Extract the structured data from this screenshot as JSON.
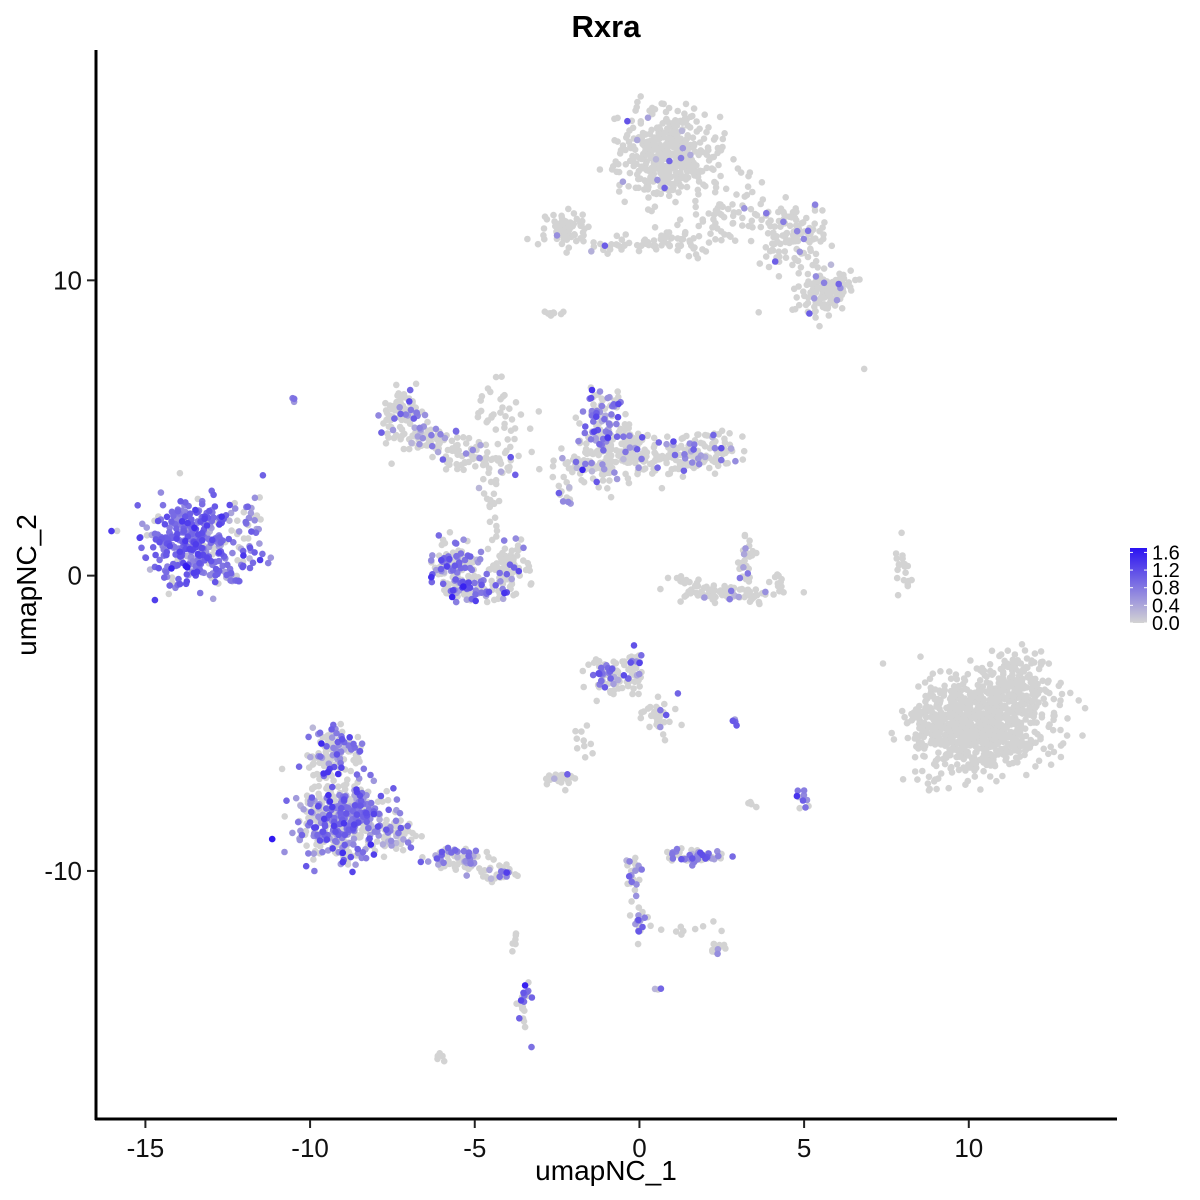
{
  "chart_data": {
    "type": "scatter",
    "title": "Rxra",
    "xlabel": "umapNC_1",
    "ylabel": "umapNC_2",
    "xlim": [
      -16.5,
      14.5
    ],
    "ylim": [
      -18.4,
      17.8
    ],
    "x_ticks": [
      {
        "value": -15,
        "label": "-15"
      },
      {
        "value": -10,
        "label": "-10"
      },
      {
        "value": -5,
        "label": "-5"
      },
      {
        "value": 0,
        "label": "0"
      },
      {
        "value": 5,
        "label": "5"
      },
      {
        "value": 10,
        "label": "10"
      }
    ],
    "y_ticks": [
      {
        "value": 10,
        "label": "10"
      },
      {
        "value": 0,
        "label": "0"
      },
      {
        "value": -10,
        "label": "-10"
      }
    ],
    "color_scale": {
      "low": "#d3d3d3",
      "high": "#2b13f2",
      "min": 0.0,
      "max": 1.7,
      "breaks": [
        {
          "value": 1.6,
          "label": "1.6"
        },
        {
          "value": 1.2,
          "label": "1.2"
        },
        {
          "value": 0.8,
          "label": "0.8"
        },
        {
          "value": 0.4,
          "label": "0.4"
        },
        {
          "value": 0.0,
          "label": "0.0"
        }
      ]
    },
    "clusters": [
      {
        "cx": -13.5,
        "cy": 1.2,
        "sx": 0.9,
        "sy": 1.0,
        "n": 360,
        "expr": 0.85,
        "frac": 0.9
      },
      {
        "cx": -11.8,
        "cy": 1.5,
        "sx": 0.35,
        "sy": 1.0,
        "n": 40,
        "expr": 0.7,
        "frac": 0.7
      },
      {
        "cx": -12.5,
        "cy": 0.0,
        "sx": 0.4,
        "sy": 0.2,
        "n": 25,
        "expr": 0.7,
        "frac": 0.7
      },
      {
        "cx": -10.5,
        "cy": 6.0,
        "sx": 0.08,
        "sy": 0.08,
        "n": 4,
        "expr": 0.7,
        "frac": 1.0
      },
      {
        "cx": 0.9,
        "cy": 14.2,
        "sx": 1.0,
        "sy": 1.0,
        "n": 450,
        "expr": 0.6,
        "frac": 0.02
      },
      {
        "cx": 2.8,
        "cy": 12.3,
        "sx": 0.8,
        "sy": 0.7,
        "n": 60,
        "expr": 0.7,
        "frac": 0.05
      },
      {
        "cx": 4.6,
        "cy": 11.4,
        "sx": 0.8,
        "sy": 0.8,
        "n": 120,
        "expr": 0.7,
        "frac": 0.06
      },
      {
        "cx": 5.5,
        "cy": 9.5,
        "sx": 0.5,
        "sy": 0.5,
        "n": 90,
        "expr": 0.7,
        "frac": 0.08
      },
      {
        "cx": 6.0,
        "cy": 9.8,
        "sx": 0.3,
        "sy": 0.3,
        "n": 40,
        "expr": 0.7,
        "frac": 0.08
      },
      {
        "cx": -2.2,
        "cy": 11.7,
        "sx": 0.5,
        "sy": 0.4,
        "n": 70,
        "expr": 0.6,
        "frac": 0.05
      },
      {
        "cx": -0.3,
        "cy": 11.2,
        "sx": 1.0,
        "sy": 0.2,
        "n": 40,
        "expr": 0.6,
        "frac": 0.03
      },
      {
        "cx": 1.3,
        "cy": 11.3,
        "sx": 0.6,
        "sy": 0.3,
        "n": 30,
        "expr": 0.6,
        "frac": 0.03
      },
      {
        "cx": -2.7,
        "cy": 8.9,
        "sx": 0.25,
        "sy": 0.1,
        "n": 8,
        "expr": 0.6,
        "frac": 0.0
      },
      {
        "cx": -7.2,
        "cy": 5.5,
        "sx": 0.45,
        "sy": 0.5,
        "n": 80,
        "expr": 0.75,
        "frac": 0.3
      },
      {
        "cx": -6.3,
        "cy": 4.6,
        "sx": 0.8,
        "sy": 0.35,
        "n": 70,
        "expr": 0.7,
        "frac": 0.15
      },
      {
        "cx": -4.9,
        "cy": 4.0,
        "sx": 0.7,
        "sy": 0.35,
        "n": 60,
        "expr": 0.7,
        "frac": 0.12
      },
      {
        "cx": -4.5,
        "cy": 5.8,
        "sx": 0.35,
        "sy": 0.9,
        "n": 20,
        "expr": 0.6,
        "frac": 0.0
      },
      {
        "cx": -3.8,
        "cy": 5.0,
        "sx": 0.35,
        "sy": 0.6,
        "n": 15,
        "expr": 0.6,
        "frac": 0.0
      },
      {
        "cx": -4.5,
        "cy": 2.5,
        "sx": 0.25,
        "sy": 0.7,
        "n": 20,
        "expr": 0.6,
        "frac": 0.05
      },
      {
        "cx": -5.6,
        "cy": 0.4,
        "sx": 0.5,
        "sy": 0.5,
        "n": 110,
        "expr": 0.85,
        "frac": 0.55
      },
      {
        "cx": -5.2,
        "cy": -0.5,
        "sx": 0.6,
        "sy": 0.25,
        "n": 70,
        "expr": 0.8,
        "frac": 0.4
      },
      {
        "cx": -4.0,
        "cy": 0.2,
        "sx": 0.5,
        "sy": 0.6,
        "n": 90,
        "expr": 0.8,
        "frac": 0.18
      },
      {
        "cx": -1.2,
        "cy": 5.3,
        "sx": 0.4,
        "sy": 0.7,
        "n": 100,
        "expr": 0.85,
        "frac": 0.4
      },
      {
        "cx": -0.4,
        "cy": 4.5,
        "sx": 0.5,
        "sy": 0.5,
        "n": 80,
        "expr": 0.75,
        "frac": 0.2
      },
      {
        "cx": -1.4,
        "cy": 3.7,
        "sx": 0.7,
        "sy": 0.5,
        "n": 90,
        "expr": 0.7,
        "frac": 0.1
      },
      {
        "cx": 0.6,
        "cy": 3.9,
        "sx": 1.0,
        "sy": 0.35,
        "n": 80,
        "expr": 0.7,
        "frac": 0.1
      },
      {
        "cx": 1.9,
        "cy": 4.2,
        "sx": 0.7,
        "sy": 0.5,
        "n": 110,
        "expr": 0.75,
        "frac": 0.18
      },
      {
        "cx": -2.3,
        "cy": 2.7,
        "sx": 0.2,
        "sy": 0.4,
        "n": 15,
        "expr": 0.7,
        "frac": 0.25
      },
      {
        "cx": 3.2,
        "cy": 0.6,
        "sx": 0.2,
        "sy": 0.6,
        "n": 30,
        "expr": 0.7,
        "frac": 0.2
      },
      {
        "cx": 2.6,
        "cy": -0.6,
        "sx": 0.9,
        "sy": 0.2,
        "n": 80,
        "expr": 0.7,
        "frac": 0.06
      },
      {
        "cx": 1.5,
        "cy": -0.2,
        "sx": 0.3,
        "sy": 0.2,
        "n": 15,
        "expr": 0.7,
        "frac": 0.0
      },
      {
        "cx": 4.1,
        "cy": -0.2,
        "sx": 0.2,
        "sy": 0.3,
        "n": 10,
        "expr": 0.7,
        "frac": 0.1
      },
      {
        "cx": 8.0,
        "cy": 0.3,
        "sx": 0.15,
        "sy": 0.6,
        "n": 20,
        "expr": 0.6,
        "frac": 0.0
      },
      {
        "cx": 10.3,
        "cy": -5.0,
        "sx": 1.3,
        "sy": 1.1,
        "n": 850,
        "expr": 0.6,
        "frac": 0.003
      },
      {
        "cx": 11.6,
        "cy": -3.6,
        "sx": 0.7,
        "sy": 0.7,
        "n": 120,
        "expr": 0.6,
        "frac": 0.0
      },
      {
        "cx": 8.8,
        "cy": -5.2,
        "sx": 0.4,
        "sy": 0.5,
        "n": 40,
        "expr": 0.6,
        "frac": 0.0
      },
      {
        "cx": -1.0,
        "cy": -3.4,
        "sx": 0.4,
        "sy": 0.45,
        "n": 60,
        "expr": 0.8,
        "frac": 0.4
      },
      {
        "cx": -0.2,
        "cy": -3.2,
        "sx": 0.3,
        "sy": 0.5,
        "n": 45,
        "expr": 0.8,
        "frac": 0.3
      },
      {
        "cx": 0.6,
        "cy": -4.7,
        "sx": 0.4,
        "sy": 0.5,
        "n": 35,
        "expr": 0.7,
        "frac": 0.2
      },
      {
        "cx": 2.9,
        "cy": -5.0,
        "sx": 0.08,
        "sy": 0.08,
        "n": 4,
        "expr": 0.9,
        "frac": 0.8
      },
      {
        "cx": -2.4,
        "cy": -6.9,
        "sx": 0.3,
        "sy": 0.2,
        "n": 30,
        "expr": 0.6,
        "frac": 0.07
      },
      {
        "cx": -1.7,
        "cy": -5.6,
        "sx": 0.3,
        "sy": 0.4,
        "n": 10,
        "expr": 0.6,
        "frac": 0.0
      },
      {
        "cx": 5.0,
        "cy": -7.5,
        "sx": 0.2,
        "sy": 0.25,
        "n": 10,
        "expr": 0.8,
        "frac": 0.7
      },
      {
        "cx": 3.4,
        "cy": -7.7,
        "sx": 0.15,
        "sy": 0.15,
        "n": 4,
        "expr": 0.6,
        "frac": 0.0
      },
      {
        "cx": -9.3,
        "cy": -6.0,
        "sx": 0.6,
        "sy": 0.6,
        "n": 120,
        "expr": 0.8,
        "frac": 0.45
      },
      {
        "cx": -9.0,
        "cy": -8.3,
        "sx": 0.9,
        "sy": 0.9,
        "n": 480,
        "expr": 0.8,
        "frac": 0.5
      },
      {
        "cx": -7.5,
        "cy": -8.8,
        "sx": 0.5,
        "sy": 0.4,
        "n": 60,
        "expr": 0.7,
        "frac": 0.25
      },
      {
        "cx": -5.5,
        "cy": -9.6,
        "sx": 0.6,
        "sy": 0.3,
        "n": 70,
        "expr": 0.7,
        "frac": 0.45
      },
      {
        "cx": -4.3,
        "cy": -10.1,
        "sx": 0.35,
        "sy": 0.2,
        "n": 30,
        "expr": 0.7,
        "frac": 0.3
      },
      {
        "cx": -0.2,
        "cy": -10.2,
        "sx": 0.15,
        "sy": 0.5,
        "n": 25,
        "expr": 0.7,
        "frac": 0.3
      },
      {
        "cx": 0.0,
        "cy": -11.8,
        "sx": 0.15,
        "sy": 0.4,
        "n": 20,
        "expr": 0.8,
        "frac": 0.5
      },
      {
        "cx": 1.7,
        "cy": -9.5,
        "sx": 0.6,
        "sy": 0.15,
        "n": 60,
        "expr": 0.7,
        "frac": 0.45
      },
      {
        "cx": 2.3,
        "cy": -12.6,
        "sx": 0.2,
        "sy": 0.15,
        "n": 15,
        "expr": 0.7,
        "frac": 0.15
      },
      {
        "cx": 1.3,
        "cy": -12.0,
        "sx": 0.6,
        "sy": 0.2,
        "n": 10,
        "expr": 0.6,
        "frac": 0.0
      },
      {
        "cx": 0.6,
        "cy": -14.0,
        "sx": 0.08,
        "sy": 0.06,
        "n": 3,
        "expr": 0.7,
        "frac": 0.6
      },
      {
        "cx": -3.5,
        "cy": -14.5,
        "sx": 0.15,
        "sy": 0.6,
        "n": 25,
        "expr": 0.85,
        "frac": 0.5
      },
      {
        "cx": -3.8,
        "cy": -12.3,
        "sx": 0.1,
        "sy": 0.4,
        "n": 6,
        "expr": 0.6,
        "frac": 0.0
      },
      {
        "cx": -6.0,
        "cy": -16.3,
        "sx": 0.15,
        "sy": 0.1,
        "n": 5,
        "expr": 0.6,
        "frac": 0.0
      },
      {
        "cx": 6.8,
        "cy": 7.0,
        "sx": 0.05,
        "sy": 0.05,
        "n": 1,
        "expr": 0.6,
        "frac": 0.0
      }
    ]
  }
}
